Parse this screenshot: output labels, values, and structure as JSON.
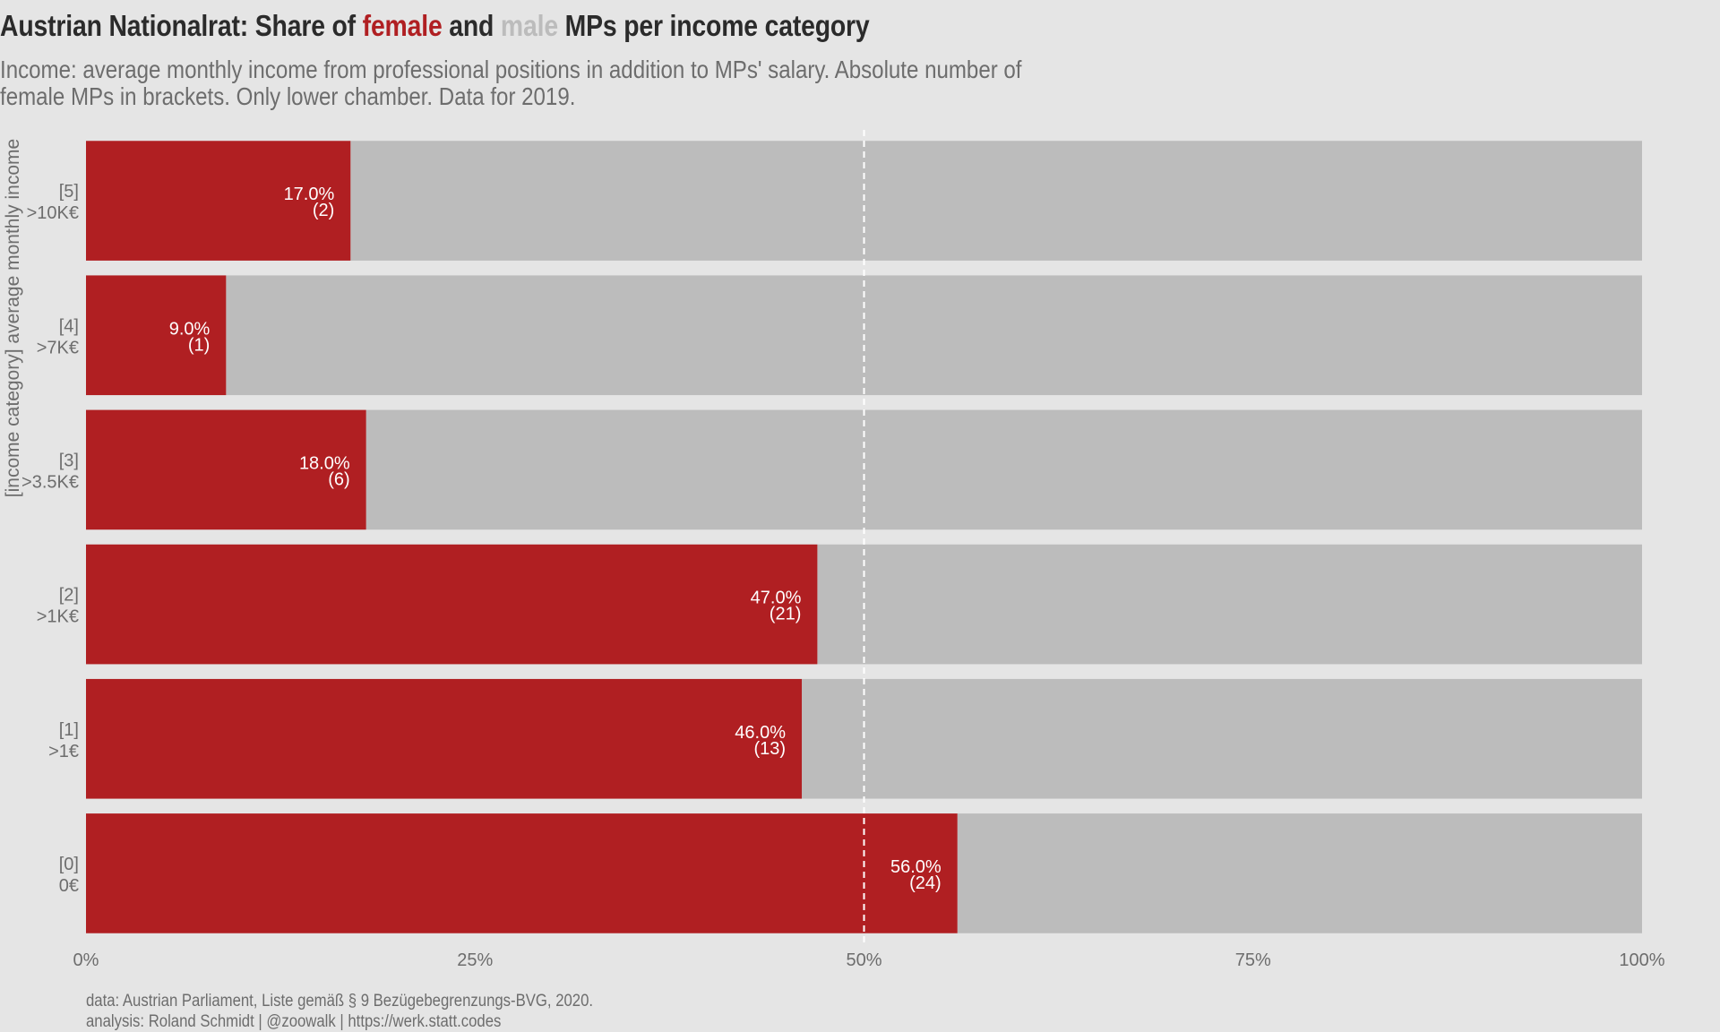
{
  "title": {
    "prefix": "Austrian Nationalrat: Share of ",
    "female": "female",
    "mid": " and ",
    "male": "male",
    "suffix": " MPs per income category"
  },
  "subtitle": {
    "line1": "Income: average monthly income from professional positions in addition to MPs' salary. Absolute number of",
    "line2": "female MPs in brackets. Only lower chamber. Data for 2019."
  },
  "caption": {
    "line1": "data: Austrian Parliament, Liste gemäß § 9 Bezügebegrenzungs-BVG, 2020.",
    "line2": "analysis: Roland Schmidt | @zoowalk | https://werk.statt.codes"
  },
  "colors": {
    "female": "#b01f22",
    "male": "#bcbcbc",
    "background": "#e5e5e5",
    "text_muted": "#6d6d6d",
    "reference_line": "#ffffff"
  },
  "chart_data": {
    "type": "bar",
    "orientation": "horizontal",
    "stacked": true,
    "ylabel": "[income category] average monthly income",
    "xlabel": "",
    "xlim": [
      0,
      100
    ],
    "x_ticks": [
      "0%",
      "25%",
      "50%",
      "75%",
      "100%"
    ],
    "x_tick_values": [
      0,
      25,
      50,
      75,
      100
    ],
    "reference_line": 50,
    "categories": [
      {
        "code": "[5]",
        "label": ">10K€"
      },
      {
        "code": "[4]",
        "label": ">7K€"
      },
      {
        "code": "[3]",
        "label": ">3.5K€"
      },
      {
        "code": "[2]",
        "label": ">1K€"
      },
      {
        "code": "[1]",
        "label": ">1€"
      },
      {
        "code": "[0]",
        "label": "0€"
      }
    ],
    "series": [
      {
        "name": "female",
        "values": [
          17.0,
          9.0,
          18.0,
          47.0,
          46.0,
          56.0
        ]
      },
      {
        "name": "male",
        "values": [
          83.0,
          91.0,
          82.0,
          53.0,
          54.0,
          44.0
        ]
      }
    ],
    "data_labels": [
      {
        "pct": "17.0%",
        "count": "(2)"
      },
      {
        "pct": "9.0%",
        "count": "(1)"
      },
      {
        "pct": "18.0%",
        "count": "(6)"
      },
      {
        "pct": "47.0%",
        "count": "(21)"
      },
      {
        "pct": "46.0%",
        "count": "(13)"
      },
      {
        "pct": "56.0%",
        "count": "(24)"
      }
    ]
  }
}
